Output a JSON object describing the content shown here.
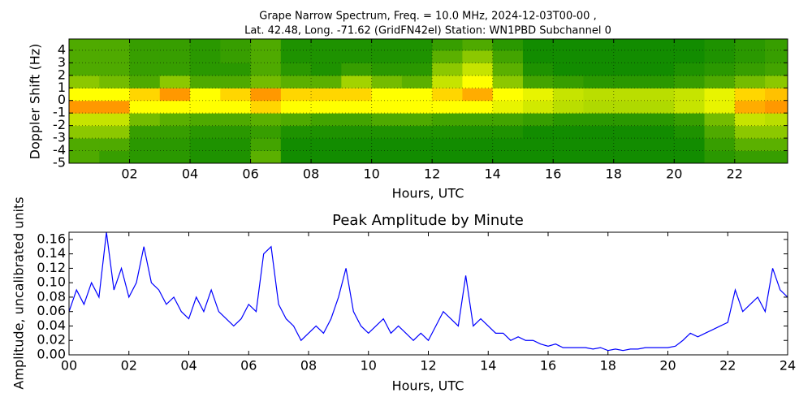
{
  "chart_data": [
    {
      "type": "heatmap",
      "title": "Grape Narrow Spectrum, Freq. = 10.0 MHz, 2024-12-03T00-00 ,",
      "subtitle": "Lat.  42.48, Long. -71.62 (GridFN42el) Station: WN1PBD Subchannel 0",
      "x_label": "Hours, UTC",
      "y_label": "Doppler Shift (Hz)",
      "xlim": [
        0,
        23.75
      ],
      "ylim": [
        -5,
        4.9
      ],
      "xticks": [
        {
          "value": 2,
          "label": "02"
        },
        {
          "value": 4,
          "label": "04"
        },
        {
          "value": 6,
          "label": "06"
        },
        {
          "value": 8,
          "label": "08"
        },
        {
          "value": 10,
          "label": "10"
        },
        {
          "value": 12,
          "label": "12"
        },
        {
          "value": 14,
          "label": "14"
        },
        {
          "value": 16,
          "label": "16"
        },
        {
          "value": 18,
          "label": "18"
        },
        {
          "value": 20,
          "label": "20"
        },
        {
          "value": 22,
          "label": "22"
        }
      ],
      "yticks": [
        -5,
        -4,
        -3,
        -2,
        -1,
        0,
        1,
        2,
        3,
        4
      ],
      "grid": true,
      "colors": [
        "#128c00",
        "#8cc800",
        "#ffff00",
        "#ff3000"
      ],
      "zlim": [
        0,
        3
      ],
      "x": [
        0.5,
        1.5,
        2.5,
        3.5,
        4.5,
        5.5,
        6.5,
        7.5,
        8.5,
        9.5,
        10.5,
        11.5,
        12.5,
        13.5,
        14.5,
        15.5,
        16.5,
        17.5,
        18.5,
        19.5,
        20.5,
        21.5,
        22.5,
        23.5
      ],
      "y": [
        -4.5,
        -3.5,
        -2.5,
        -1.5,
        -0.5,
        0.5,
        1.5,
        2.5,
        3.5,
        4.5
      ],
      "z": [
        [
          0.5,
          0.5,
          1,
          1.5,
          2.5,
          2,
          1,
          0.5,
          0.5,
          0.5
        ],
        [
          0.3,
          0.5,
          1,
          1.5,
          2.5,
          2,
          0.8,
          0.5,
          0.5,
          0.5
        ],
        [
          0.2,
          0.2,
          0.3,
          0.8,
          2,
          2.2,
          0.5,
          0.3,
          0.3,
          0.3
        ],
        [
          0.2,
          0.2,
          0.3,
          0.6,
          2,
          2.5,
          1,
          0.3,
          0.3,
          0.3
        ],
        [
          0.1,
          0.1,
          0.2,
          0.5,
          2,
          2,
          0.5,
          0.2,
          0.2,
          0.2
        ],
        [
          0.1,
          0.1,
          0.2,
          0.5,
          2,
          2.2,
          0.5,
          0.2,
          0.3,
          0.3
        ],
        [
          0.6,
          0.4,
          0.3,
          0.6,
          2.2,
          2.5,
          0.8,
          0.5,
          0.5,
          0.5
        ],
        [
          0,
          0,
          0.1,
          0.5,
          2,
          2.2,
          0.6,
          0.2,
          0.1,
          0.1
        ],
        [
          0,
          0,
          0.1,
          0.4,
          2,
          2.2,
          0.6,
          0.1,
          0.1,
          0.1
        ],
        [
          0,
          0,
          0.1,
          0.4,
          2,
          2.2,
          1.2,
          0.3,
          0.1,
          0.1
        ],
        [
          0,
          0,
          0.1,
          0.5,
          2,
          2,
          0.8,
          0.2,
          0.1,
          0.1
        ],
        [
          0,
          0,
          0.1,
          0.5,
          2,
          2,
          0.6,
          0.2,
          0.1,
          0.1
        ],
        [
          0,
          0,
          0.1,
          0.4,
          2,
          2.2,
          1.5,
          1,
          0.6,
          0.3
        ],
        [
          0,
          0,
          0.1,
          0.4,
          2,
          2.4,
          2,
          1.5,
          1,
          0.5
        ],
        [
          0,
          0,
          0.1,
          0.4,
          1.8,
          2,
          1,
          0.6,
          0.4,
          0.2
        ],
        [
          0,
          0,
          0,
          0.3,
          1.6,
          1.8,
          0.4,
          0.1,
          0,
          0
        ],
        [
          0,
          0,
          0,
          0.2,
          1.4,
          1.5,
          0.3,
          0,
          0,
          0
        ],
        [
          0,
          0,
          0,
          0.2,
          1.3,
          1.4,
          0.2,
          0,
          0,
          0
        ],
        [
          0,
          0,
          0,
          0.2,
          1.3,
          1.4,
          0.2,
          0,
          0,
          0
        ],
        [
          0,
          0,
          0,
          0.2,
          1.3,
          1.4,
          0.2,
          0,
          0,
          0
        ],
        [
          0,
          0,
          0.1,
          0.3,
          1.5,
          1.5,
          0.3,
          0.1,
          0,
          0
        ],
        [
          0.2,
          0.3,
          0.5,
          0.8,
          1.8,
          1.8,
          0.5,
          0.2,
          0.1,
          0.1
        ],
        [
          0.3,
          0.6,
          1,
          1.5,
          2.4,
          2.2,
          0.8,
          0.3,
          0.2,
          0.2
        ],
        [
          0.3,
          0.6,
          1,
          1.4,
          2.5,
          2.3,
          1,
          0.4,
          0.3,
          0.3
        ]
      ]
    },
    {
      "type": "line",
      "title": "Peak Amplitude by Minute",
      "x_label": "Hours, UTC",
      "y_label": "Amplitude, uncalibrated units",
      "color": "#0000ff",
      "xlim": [
        0,
        24
      ],
      "ylim": [
        0,
        0.17
      ],
      "xticks": [
        {
          "value": 0,
          "label": "00"
        },
        {
          "value": 2,
          "label": "02"
        },
        {
          "value": 4,
          "label": "04"
        },
        {
          "value": 6,
          "label": "06"
        },
        {
          "value": 8,
          "label": "08"
        },
        {
          "value": 10,
          "label": "10"
        },
        {
          "value": 12,
          "label": "12"
        },
        {
          "value": 14,
          "label": "14"
        },
        {
          "value": 16,
          "label": "16"
        },
        {
          "value": 18,
          "label": "18"
        },
        {
          "value": 20,
          "label": "20"
        },
        {
          "value": 22,
          "label": "22"
        },
        {
          "value": 24,
          "label": "24"
        }
      ],
      "yticks": [
        {
          "value": 0,
          "label": "0.00"
        },
        {
          "value": 0.02,
          "label": "0.02"
        },
        {
          "value": 0.04,
          "label": "0.04"
        },
        {
          "value": 0.06,
          "label": "0.06"
        },
        {
          "value": 0.08,
          "label": "0.08"
        },
        {
          "value": 0.1,
          "label": "0.10"
        },
        {
          "value": 0.12,
          "label": "0.12"
        },
        {
          "value": 0.14,
          "label": "0.14"
        },
        {
          "value": 0.16,
          "label": "0.16"
        }
      ],
      "grid": false,
      "x": [
        0,
        0.25,
        0.5,
        0.75,
        1,
        1.25,
        1.5,
        1.75,
        2,
        2.25,
        2.5,
        2.75,
        3,
        3.25,
        3.5,
        3.75,
        4,
        4.25,
        4.5,
        4.75,
        5,
        5.25,
        5.5,
        5.75,
        6,
        6.25,
        6.5,
        6.75,
        7,
        7.25,
        7.5,
        7.75,
        8,
        8.25,
        8.5,
        8.75,
        9,
        9.25,
        9.5,
        9.75,
        10,
        10.25,
        10.5,
        10.75,
        11,
        11.25,
        11.5,
        11.75,
        12,
        12.25,
        12.5,
        12.75,
        13,
        13.25,
        13.5,
        13.75,
        14,
        14.25,
        14.5,
        14.75,
        15,
        15.25,
        15.5,
        15.75,
        16,
        16.25,
        16.5,
        16.75,
        17,
        17.25,
        17.5,
        17.75,
        18,
        18.25,
        18.5,
        18.75,
        19,
        19.25,
        19.5,
        19.75,
        20,
        20.25,
        20.5,
        20.75,
        21,
        21.25,
        21.5,
        21.75,
        22,
        22.25,
        22.5,
        22.75,
        23,
        23.25,
        23.5,
        23.75,
        24
      ],
      "values": [
        0.06,
        0.09,
        0.07,
        0.1,
        0.08,
        0.17,
        0.09,
        0.12,
        0.08,
        0.1,
        0.15,
        0.1,
        0.09,
        0.07,
        0.08,
        0.06,
        0.05,
        0.08,
        0.06,
        0.09,
        0.06,
        0.05,
        0.04,
        0.05,
        0.07,
        0.06,
        0.14,
        0.15,
        0.07,
        0.05,
        0.04,
        0.02,
        0.03,
        0.04,
        0.03,
        0.05,
        0.08,
        0.12,
        0.06,
        0.04,
        0.03,
        0.04,
        0.05,
        0.03,
        0.04,
        0.03,
        0.02,
        0.03,
        0.02,
        0.04,
        0.06,
        0.05,
        0.04,
        0.11,
        0.04,
        0.05,
        0.04,
        0.03,
        0.03,
        0.02,
        0.025,
        0.02,
        0.02,
        0.015,
        0.012,
        0.015,
        0.01,
        0.01,
        0.01,
        0.01,
        0.008,
        0.01,
        0.006,
        0.008,
        0.006,
        0.008,
        0.008,
        0.01,
        0.01,
        0.01,
        0.01,
        0.012,
        0.02,
        0.03,
        0.025,
        0.03,
        0.035,
        0.04,
        0.045,
        0.09,
        0.06,
        0.07,
        0.08,
        0.06,
        0.12,
        0.09,
        0.08
      ]
    }
  ]
}
